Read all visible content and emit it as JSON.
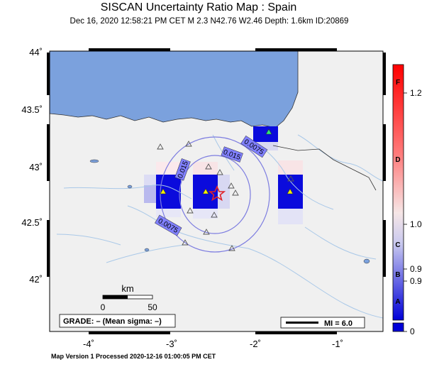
{
  "title": "SISCAN Uncertainty Ratio Map : Spain",
  "subtitle": "Dec 16, 2020 12:58:21 PM CET   M 2.3   N42.76 W2.46   Depth: 1.6km   ID:20869",
  "footer": "Map Version 1 Processed 2020-12-16 01:00:05 PM CET",
  "lat_labels": [
    "44˚",
    "43.5˚",
    "43˚",
    "42.5˚",
    "42˚"
  ],
  "lon_labels": [
    "-4˚",
    "-3˚",
    "-2˚",
    "-1˚"
  ],
  "contour_labels": [
    "0.0075",
    "0.015",
    "0.015",
    "0.0075"
  ],
  "scale_bar": {
    "unit": "km",
    "ticks": [
      "0",
      "50"
    ]
  },
  "grade_box": "GRADE: – (Mean sigma: –)",
  "mi_box": "MI = 6.0",
  "colorbar": {
    "letters": [
      "F",
      "D",
      "C",
      "B",
      "A"
    ],
    "values": [
      "1.2",
      "1.0",
      "0.9",
      "0.9",
      "0"
    ]
  },
  "colors": {
    "sea": "#7ba1dd",
    "land": "#f0f0f0",
    "river": "#a9c8e8",
    "contour": "#7d7de0",
    "epicenter": "#e0232a"
  }
}
